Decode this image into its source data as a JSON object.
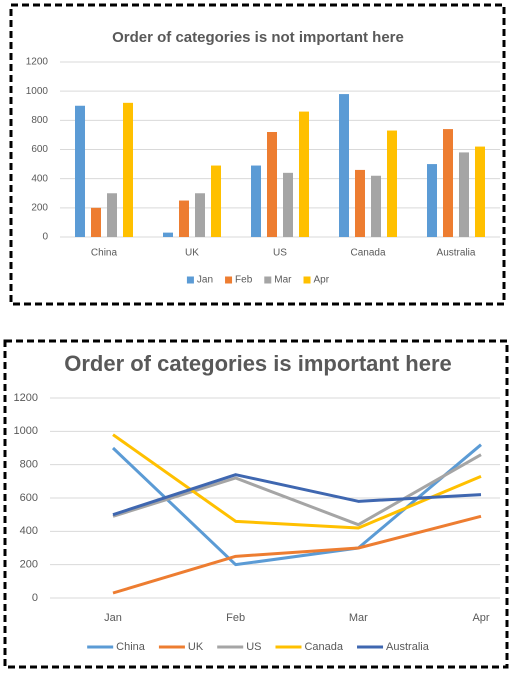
{
  "chart_data": [
    {
      "type": "bar",
      "title": "Order of categories is not important here",
      "categories": [
        "China",
        "UK",
        "US",
        "Canada",
        "Australia"
      ],
      "series": [
        {
          "name": "Jan",
          "color": "#5b9bd5",
          "values": [
            900,
            30,
            490,
            980,
            500
          ]
        },
        {
          "name": "Feb",
          "color": "#ed7d31",
          "values": [
            200,
            250,
            720,
            460,
            740
          ]
        },
        {
          "name": "Mar",
          "color": "#a5a5a5",
          "values": [
            300,
            300,
            440,
            420,
            580
          ]
        },
        {
          "name": "Apr",
          "color": "#ffc000",
          "values": [
            920,
            490,
            860,
            730,
            620
          ]
        }
      ],
      "ylim": [
        0,
        1200
      ],
      "yticks": [
        0,
        200,
        400,
        600,
        800,
        1000,
        1200
      ],
      "grid": true,
      "legend": "bottom"
    },
    {
      "type": "line",
      "title": "Order of categories is important here",
      "categories": [
        "Jan",
        "Feb",
        "Mar",
        "Apr"
      ],
      "series": [
        {
          "name": "China",
          "color": "#5b9bd5",
          "values": [
            900,
            200,
            300,
            920
          ]
        },
        {
          "name": "UK",
          "color": "#ed7d31",
          "values": [
            30,
            250,
            300,
            490
          ]
        },
        {
          "name": "US",
          "color": "#a5a5a5",
          "values": [
            490,
            720,
            440,
            860
          ]
        },
        {
          "name": "Canada",
          "color": "#ffc000",
          "values": [
            980,
            460,
            420,
            730
          ]
        },
        {
          "name": "Australia",
          "color": "#3f67b0",
          "values": [
            500,
            740,
            580,
            620
          ]
        }
      ],
      "ylim": [
        0,
        1200
      ],
      "yticks": [
        0,
        200,
        400,
        600,
        800,
        1000,
        1200
      ],
      "grid": true,
      "legend": "bottom"
    }
  ]
}
